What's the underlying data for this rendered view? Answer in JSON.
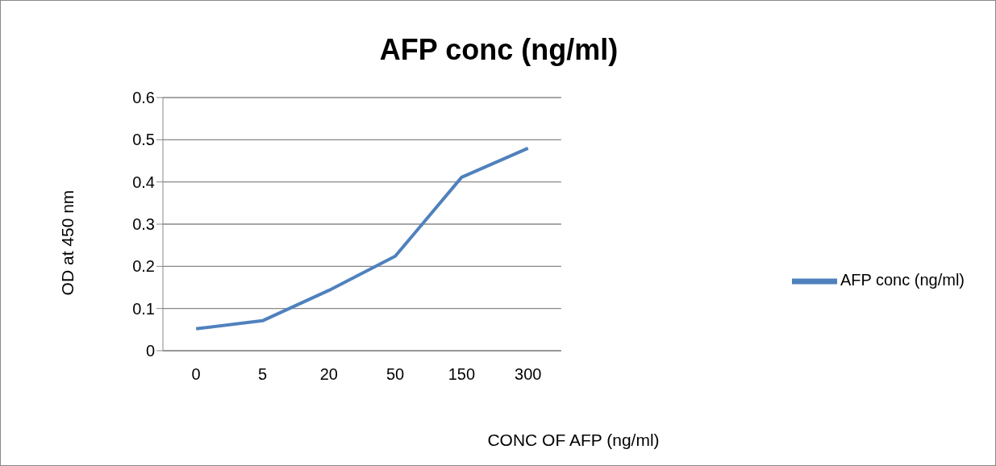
{
  "chart_data": {
    "type": "line",
    "title": "AFP conc (ng/ml)",
    "xlabel": "CONC OF AFP (ng/ml)",
    "ylabel": "OD at 450 nm",
    "categories": [
      "0",
      "5",
      "20",
      "50",
      "150",
      "300"
    ],
    "series": [
      {
        "name": "AFP conc (ng/ml)",
        "color": "#4f81bd",
        "values": [
          0.052,
          0.071,
          0.143,
          0.224,
          0.411,
          0.48
        ]
      }
    ],
    "ylim": [
      0,
      0.6
    ],
    "yticks": [
      0,
      0.1,
      0.2,
      0.3,
      0.4,
      0.5,
      0.6
    ],
    "grid": "y",
    "legend": "right",
    "marker": "none",
    "line_style": "solid"
  }
}
